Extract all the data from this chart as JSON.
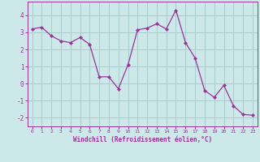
{
  "x": [
    0,
    1,
    2,
    3,
    4,
    5,
    6,
    7,
    8,
    9,
    10,
    11,
    12,
    13,
    14,
    15,
    16,
    17,
    18,
    19,
    20,
    21,
    22,
    23
  ],
  "y": [
    3.2,
    3.3,
    2.8,
    2.5,
    2.4,
    2.7,
    2.3,
    0.4,
    0.4,
    -0.3,
    1.1,
    3.15,
    3.25,
    3.5,
    3.2,
    4.3,
    2.4,
    1.5,
    -0.4,
    -0.8,
    -0.1,
    -1.3,
    -1.8,
    -1.85
  ],
  "line_color": "#993399",
  "marker": "D",
  "marker_size": 2.2,
  "bg_color": "#cce8e8",
  "grid_color": "#aacccc",
  "xlabel": "Windchill (Refroidissement éolien,°C)",
  "xlabel_color": "#993399",
  "tick_color": "#993399",
  "axis_color": "#993399",
  "ylim": [
    -2.5,
    4.8
  ],
  "xlim": [
    -0.5,
    23.5
  ],
  "yticks": [
    -2,
    -1,
    0,
    1,
    2,
    3,
    4
  ],
  "xticks": [
    0,
    1,
    2,
    3,
    4,
    5,
    6,
    7,
    8,
    9,
    10,
    11,
    12,
    13,
    14,
    15,
    16,
    17,
    18,
    19,
    20,
    21,
    22,
    23
  ]
}
